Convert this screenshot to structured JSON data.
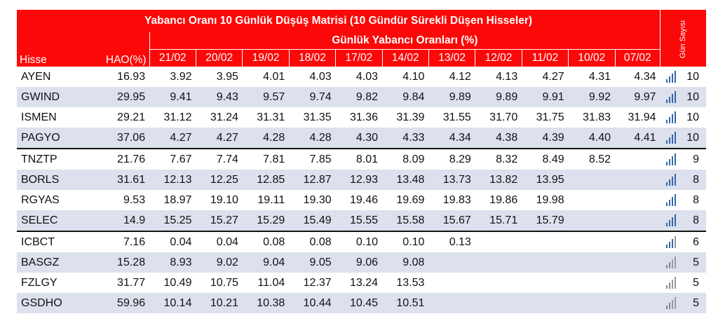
{
  "title": "Yabancı Oranı 10 Günlük Düşüş Matrisi  (10 Gündür Sürekli Düşen Hisseler)",
  "subtitle": "Günlük Yabancı Oranları (%)",
  "headers": {
    "hisse": "Hisse",
    "hao": "HAO(%)",
    "gun_sayisi": "Gün Sayısı",
    "dates": [
      "21/02",
      "20/02",
      "19/02",
      "18/02",
      "17/02",
      "14/02",
      "13/02",
      "12/02",
      "11/02",
      "10/02",
      "07/02"
    ]
  },
  "rows": [
    {
      "hisse": "AYEN",
      "hao": "16.93",
      "values": [
        "3.92",
        "3.95",
        "4.01",
        "4.03",
        "4.03",
        "4.10",
        "4.12",
        "4.13",
        "4.27",
        "4.31",
        "4.34"
      ],
      "gun": "10",
      "icon": "bar-chart-icon"
    },
    {
      "hisse": "GWIND",
      "hao": "29.95",
      "values": [
        "9.41",
        "9.43",
        "9.57",
        "9.74",
        "9.82",
        "9.84",
        "9.89",
        "9.89",
        "9.91",
        "9.92",
        "9.97"
      ],
      "gun": "10",
      "icon": "bar-chart-icon"
    },
    {
      "hisse": "ISMEN",
      "hao": "29.21",
      "values": [
        "31.12",
        "31.24",
        "31.31",
        "31.35",
        "31.36",
        "31.39",
        "31.55",
        "31.70",
        "31.75",
        "31.83",
        "31.94"
      ],
      "gun": "10",
      "icon": "bar-chart-icon"
    },
    {
      "hisse": "PAGYO",
      "hao": "37.06",
      "values": [
        "4.27",
        "4.27",
        "4.28",
        "4.28",
        "4.30",
        "4.33",
        "4.34",
        "4.38",
        "4.39",
        "4.40",
        "4.41"
      ],
      "gun": "10",
      "icon": "bar-chart-icon"
    },
    {
      "hisse": "TNZTP",
      "hao": "21.76",
      "values": [
        "7.67",
        "7.74",
        "7.81",
        "7.85",
        "8.01",
        "8.09",
        "8.29",
        "8.32",
        "8.49",
        "8.52",
        ""
      ],
      "gun": "9",
      "icon": "bar-chart-icon"
    },
    {
      "hisse": "BORLS",
      "hao": "31.61",
      "values": [
        "12.13",
        "12.25",
        "12.85",
        "12.87",
        "12.93",
        "13.48",
        "13.73",
        "13.82",
        "13.95",
        "",
        ""
      ],
      "gun": "8",
      "icon": "bar-chart-icon"
    },
    {
      "hisse": "RGYAS",
      "hao": "9.53",
      "values": [
        "18.97",
        "19.10",
        "19.11",
        "19.30",
        "19.46",
        "19.69",
        "19.83",
        "19.86",
        "19.98",
        "",
        ""
      ],
      "gun": "8",
      "icon": "bar-chart-icon"
    },
    {
      "hisse": "SELEC",
      "hao": "14.9",
      "values": [
        "15.25",
        "15.27",
        "15.29",
        "15.49",
        "15.55",
        "15.58",
        "15.67",
        "15.71",
        "15.79",
        "",
        ""
      ],
      "gun": "8",
      "icon": "bar-chart-icon"
    },
    {
      "hisse": "ICBCT",
      "hao": "7.16",
      "values": [
        "0.04",
        "0.04",
        "0.08",
        "0.08",
        "0.10",
        "0.10",
        "0.13",
        "",
        "",
        "",
        ""
      ],
      "gun": "6",
      "icon": "bar-chart-icon"
    },
    {
      "hisse": "BASGZ",
      "hao": "15.28",
      "values": [
        "8.93",
        "9.02",
        "9.04",
        "9.05",
        "9.06",
        "9.08",
        "",
        "",
        "",
        "",
        ""
      ],
      "gun": "5",
      "icon": "bar-chart-icon"
    },
    {
      "hisse": "FZLGY",
      "hao": "31.77",
      "values": [
        "10.49",
        "10.75",
        "11.04",
        "12.37",
        "13.24",
        "13.53",
        "",
        "",
        "",
        "",
        ""
      ],
      "gun": "5",
      "icon": "bar-chart-icon"
    },
    {
      "hisse": "GSDHO",
      "hao": "59.96",
      "values": [
        "10.14",
        "10.21",
        "10.38",
        "10.44",
        "10.45",
        "10.51",
        "",
        "",
        "",
        "",
        ""
      ],
      "gun": "5",
      "icon": "bar-chart-icon"
    }
  ],
  "colors": {
    "header_bg": "#fb0808",
    "alt_row_bg": "#dde1ee",
    "icon_blue": "#3366aa",
    "icon_grey": "#888888"
  }
}
